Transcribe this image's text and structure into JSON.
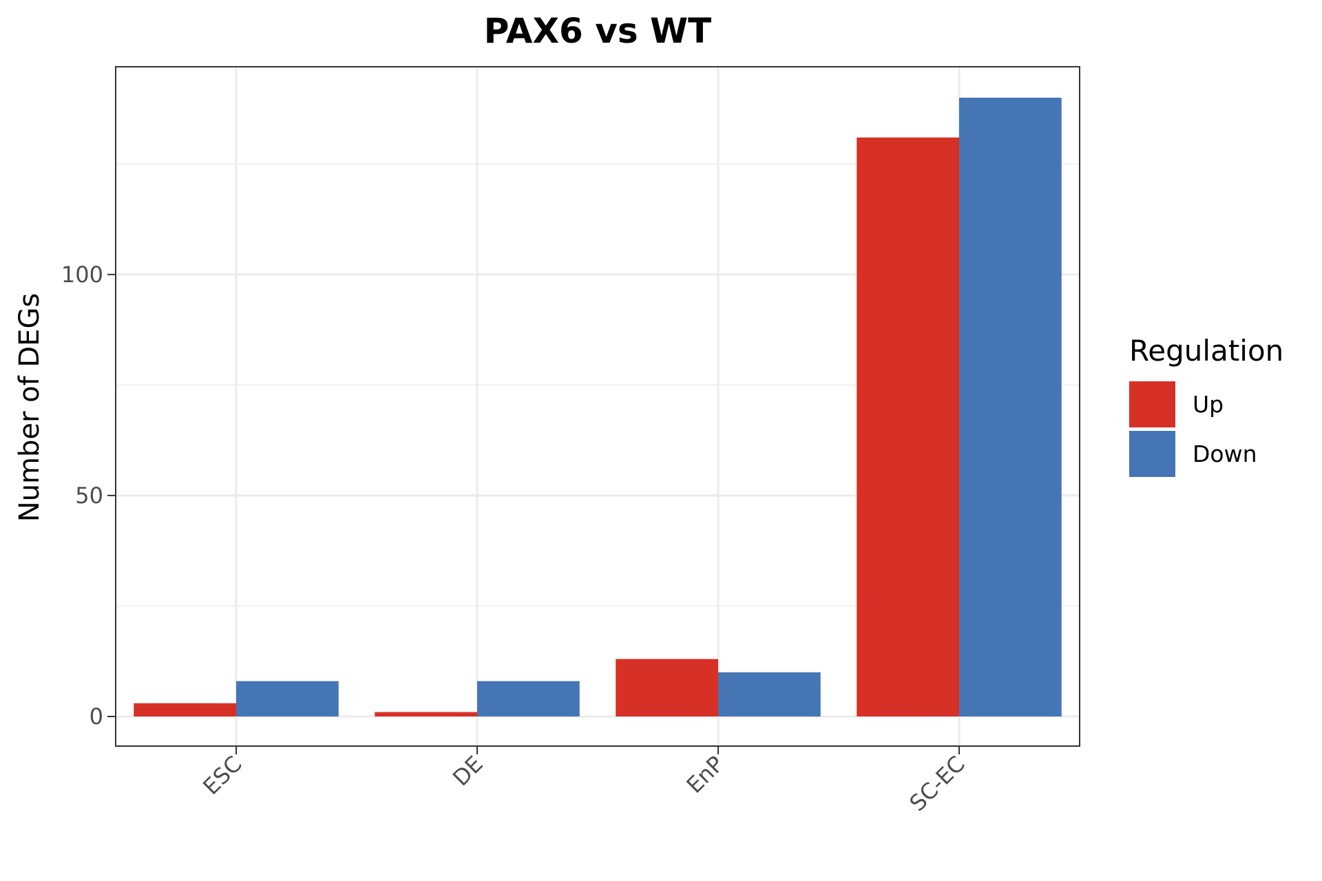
{
  "chart_data": {
    "type": "bar",
    "title": "PAX6 vs WT",
    "xlabel": "",
    "ylabel": "Number of DEGs",
    "categories": [
      "ESC",
      "DE",
      "EnP",
      "SC-EC"
    ],
    "series": [
      {
        "name": "Up",
        "color": "#d73027",
        "values": [
          3,
          1,
          13,
          131
        ]
      },
      {
        "name": "Down",
        "color": "#4575b4",
        "values": [
          8,
          8,
          10,
          140
        ]
      }
    ],
    "ylim": [
      -6.7,
      147
    ],
    "yticks": [
      0,
      50,
      100
    ],
    "grid": true,
    "legend": {
      "title": "Regulation",
      "position": "right"
    }
  }
}
